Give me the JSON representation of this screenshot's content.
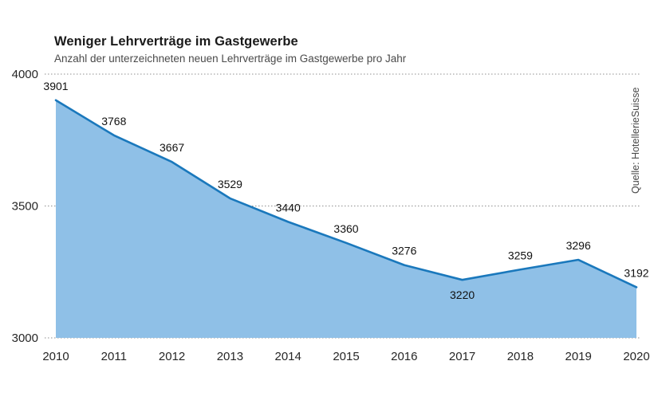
{
  "chart_data": {
    "type": "area",
    "title": "Weniger Lehrverträge im Gastgewerbe",
    "subtitle": "Anzahl der unterzeichneten neuen Lehrverträge im Gastgewerbe pro Jahr",
    "source": "Quelle: HotellerieSuisse",
    "categories": [
      "2010",
      "2011",
      "2012",
      "2013",
      "2014",
      "2015",
      "2016",
      "2017",
      "2018",
      "2019",
      "2020"
    ],
    "values": [
      3901,
      3768,
      3667,
      3529,
      3440,
      3360,
      3276,
      3220,
      3259,
      3296,
      3192
    ],
    "xlabel": "",
    "ylabel": "",
    "ylim": [
      3000,
      4000
    ],
    "yticks": [
      4000,
      3500,
      3000
    ],
    "grid": "horizontal-dotted",
    "legend": "none",
    "labels_below_line": [
      "2017"
    ],
    "colors": {
      "area_fill": "#8fc0e7",
      "line": "#1a78bc",
      "grid": "#8f8f8f",
      "value_label": "#111111",
      "tick_label": "#262626",
      "title": "#1a1a1a",
      "subtitle": "#4a4a4a"
    }
  }
}
